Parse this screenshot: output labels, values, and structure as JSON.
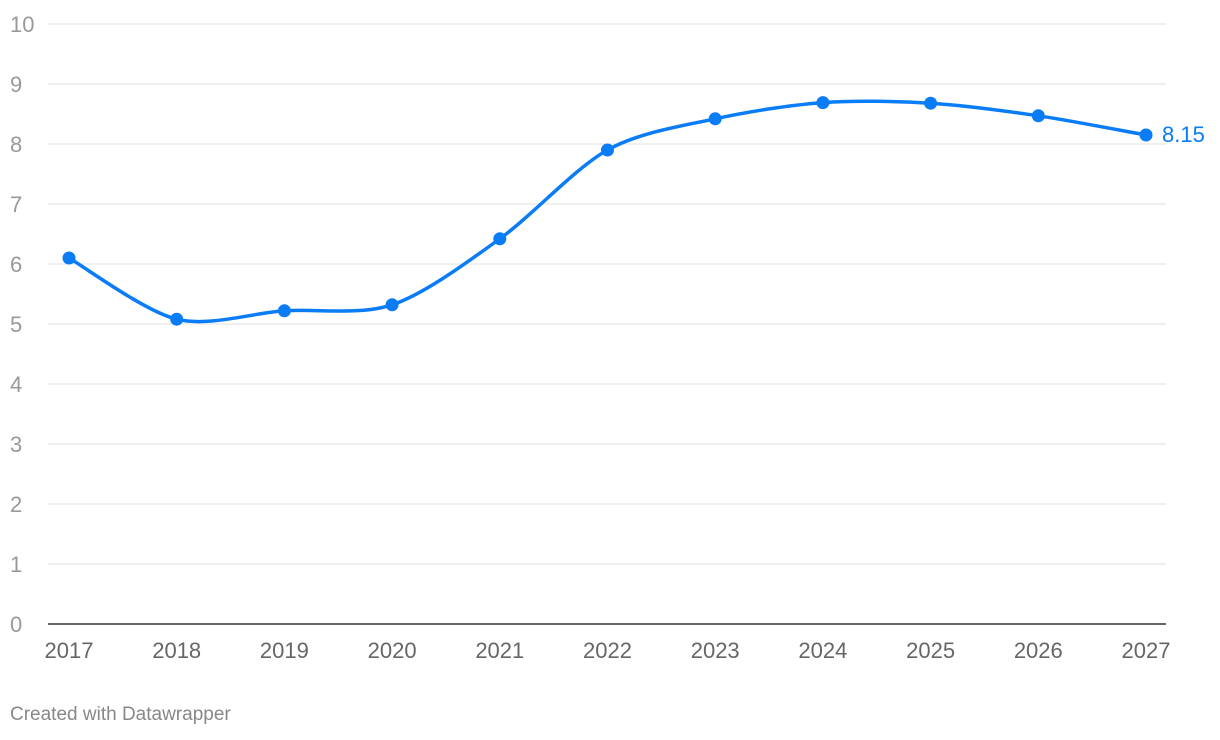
{
  "chart_data": {
    "type": "line",
    "x": [
      "2017",
      "2018",
      "2019",
      "2020",
      "2021",
      "2022",
      "2023",
      "2024",
      "2025",
      "2026",
      "2027"
    ],
    "series": [
      {
        "values": [
          6.1,
          5.08,
          5.22,
          5.32,
          6.42,
          7.9,
          8.42,
          8.69,
          8.68,
          8.47,
          8.15
        ],
        "color": "#0a7cf5"
      }
    ],
    "ylim": [
      0,
      10
    ],
    "yticks": [
      "0",
      "1",
      "2",
      "3",
      "4",
      "5",
      "6",
      "7",
      "8",
      "9",
      "10"
    ],
    "grid": true,
    "data_labels": [
      {
        "index": 10,
        "text": "8.15"
      }
    ]
  },
  "footer": {
    "credit": "Created with Datawrapper"
  }
}
